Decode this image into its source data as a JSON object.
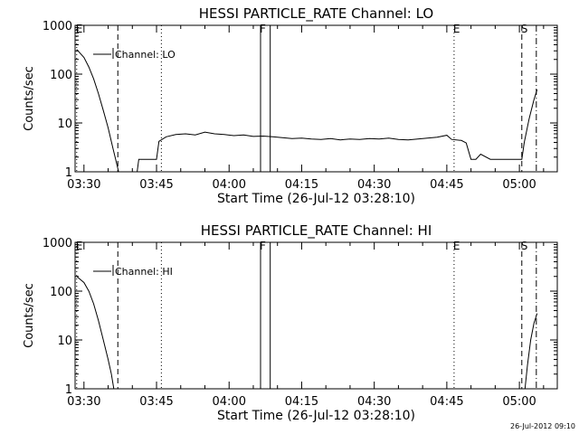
{
  "footer_timestamp": "26-Jul-2012 09:10",
  "chart_data": [
    {
      "type": "line",
      "title": "HESSI PARTICLE_RATE Channel: LO",
      "xlabel": "Start Time (26-Jul-12 03:28:10)",
      "ylabel": "Counts/sec",
      "x_ticks": [
        "03:30",
        "03:45",
        "04:00",
        "04:15",
        "04:30",
        "04:45",
        "05:00"
      ],
      "y_ticks": [
        "1",
        "10",
        "100",
        "1000"
      ],
      "y_scale": "log",
      "ylim": [
        1,
        1000
      ],
      "xlim": [
        "03:28:10",
        "05:07:50"
      ],
      "legend": {
        "placement": "top-left",
        "entries": [
          "Channel: LO"
        ]
      },
      "markers": [
        {
          "label": "E",
          "time": "03:28:30",
          "style": "dotted"
        },
        {
          "label": "",
          "time": "03:37:00",
          "style": "dashed"
        },
        {
          "label": "",
          "time": "03:46:00",
          "style": "dotted"
        },
        {
          "label": "F",
          "time": "04:06:30",
          "style": "solid"
        },
        {
          "label": "",
          "time": "04:08:30",
          "style": "solid"
        },
        {
          "label": "E",
          "time": "04:46:30",
          "style": "dotted"
        },
        {
          "label": "S",
          "time": "05:00:30",
          "style": "dashed"
        },
        {
          "label": "",
          "time": "05:03:30",
          "style": "dash-dot"
        }
      ],
      "series": [
        {
          "name": "Channel: LO",
          "points": [
            [
              "03:28:30",
              320
            ],
            [
              "03:30:00",
              220
            ],
            [
              "03:31:00",
              140
            ],
            [
              "03:32:00",
              80
            ],
            [
              "03:33:00",
              40
            ],
            [
              "03:34:00",
              18
            ],
            [
              "03:35:00",
              8
            ],
            [
              "03:36:00",
              3
            ],
            [
              "03:36:40",
              1.6
            ],
            [
              "03:37:10",
              1
            ],
            [
              "03:41:00",
              1
            ],
            [
              "03:41:20",
              1.8
            ],
            [
              "03:42:00",
              1.8
            ],
            [
              "03:45:00",
              1.8
            ],
            [
              "03:45:30",
              4.2
            ],
            [
              "03:47:00",
              5.2
            ],
            [
              "03:49:00",
              5.8
            ],
            [
              "03:51:00",
              6.0
            ],
            [
              "03:53:00",
              5.7
            ],
            [
              "03:55:00",
              6.5
            ],
            [
              "03:57:00",
              6.0
            ],
            [
              "03:59:00",
              5.8
            ],
            [
              "04:01:00",
              5.5
            ],
            [
              "04:03:00",
              5.7
            ],
            [
              "04:05:00",
              5.3
            ],
            [
              "04:07:00",
              5.4
            ],
            [
              "04:09:00",
              5.2
            ],
            [
              "04:11:00",
              5.0
            ],
            [
              "04:13:00",
              4.8
            ],
            [
              "04:15:00",
              4.9
            ],
            [
              "04:17:00",
              4.7
            ],
            [
              "04:19:00",
              4.6
            ],
            [
              "04:21:00",
              4.8
            ],
            [
              "04:23:00",
              4.5
            ],
            [
              "04:25:00",
              4.7
            ],
            [
              "04:27:00",
              4.6
            ],
            [
              "04:29:00",
              4.8
            ],
            [
              "04:31:00",
              4.7
            ],
            [
              "04:33:00",
              4.9
            ],
            [
              "04:35:00",
              4.6
            ],
            [
              "04:37:00",
              4.5
            ],
            [
              "04:39:00",
              4.7
            ],
            [
              "04:41:00",
              4.9
            ],
            [
              "04:43:00",
              5.1
            ],
            [
              "04:45:00",
              5.6
            ],
            [
              "04:46:00",
              4.6
            ],
            [
              "04:48:00",
              4.4
            ],
            [
              "04:49:00",
              3.9
            ],
            [
              "04:50:00",
              1.8
            ],
            [
              "04:51:00",
              1.8
            ],
            [
              "04:52:00",
              2.3
            ],
            [
              "04:54:00",
              1.8
            ],
            [
              "04:56:00",
              1.8
            ],
            [
              "04:58:00",
              1.8
            ],
            [
              "05:00:30",
              1.8
            ],
            [
              "05:01:00",
              4
            ],
            [
              "05:02:00",
              12
            ],
            [
              "05:03:00",
              30
            ],
            [
              "05:03:40",
              48
            ]
          ]
        }
      ]
    },
    {
      "type": "line",
      "title": "HESSI PARTICLE_RATE Channel: HI",
      "xlabel": "Start Time (26-Jul-12 03:28:10)",
      "ylabel": "Counts/sec",
      "x_ticks": [
        "03:30",
        "03:45",
        "04:00",
        "04:15",
        "04:30",
        "04:45",
        "05:00"
      ],
      "y_ticks": [
        "1",
        "10",
        "100",
        "1000"
      ],
      "y_scale": "log",
      "ylim": [
        1,
        1000
      ],
      "xlim": [
        "03:28:10",
        "05:07:50"
      ],
      "legend": {
        "placement": "top-left",
        "entries": [
          "Channel: HI"
        ]
      },
      "markers": [
        {
          "label": "E",
          "time": "03:28:30",
          "style": "dotted"
        },
        {
          "label": "",
          "time": "03:37:00",
          "style": "dashed"
        },
        {
          "label": "",
          "time": "03:46:00",
          "style": "dotted"
        },
        {
          "label": "F",
          "time": "04:06:30",
          "style": "solid"
        },
        {
          "label": "",
          "time": "04:08:30",
          "style": "solid"
        },
        {
          "label": "E",
          "time": "04:46:30",
          "style": "dotted"
        },
        {
          "label": "S",
          "time": "05:00:30",
          "style": "dashed"
        },
        {
          "label": "",
          "time": "05:03:30",
          "style": "dash-dot"
        }
      ],
      "series": [
        {
          "name": "Channel: HI",
          "points": [
            [
              "03:28:30",
              200
            ],
            [
              "03:30:00",
              150
            ],
            [
              "03:31:00",
              100
            ],
            [
              "03:32:00",
              55
            ],
            [
              "03:33:00",
              25
            ],
            [
              "03:34:00",
              10
            ],
            [
              "03:35:00",
              4
            ],
            [
              "03:35:40",
              2
            ],
            [
              "03:36:10",
              1
            ],
            [
              "05:01:10",
              1
            ],
            [
              "05:01:40",
              3
            ],
            [
              "05:02:20",
              10
            ],
            [
              "05:03:00",
              22
            ],
            [
              "05:03:40",
              35
            ]
          ]
        }
      ]
    }
  ]
}
